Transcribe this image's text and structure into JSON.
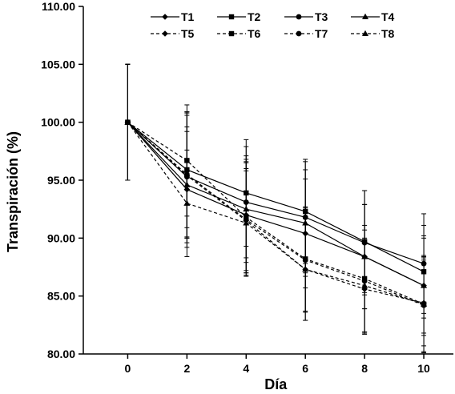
{
  "chart_data": {
    "type": "line",
    "xlabel": "Día",
    "ylabel": "Transpiración  (%)",
    "xlim": [
      -1.5,
      11.0
    ],
    "ylim": [
      80,
      110
    ],
    "x_ticks": [
      0,
      2,
      4,
      6,
      8,
      10
    ],
    "x_tick_labels": [
      "0",
      "2",
      "4",
      "6",
      "8",
      "10"
    ],
    "y_ticks": [
      80,
      85,
      90,
      95,
      100,
      105,
      110
    ],
    "y_tick_labels": [
      "80.00",
      "85.00",
      "90.00",
      "95.00",
      "100.00",
      "105.00",
      "110.00"
    ],
    "grid": false,
    "legend_position": "top",
    "x": [
      0,
      2,
      4,
      6,
      8,
      10
    ],
    "series": [
      {
        "name": "T1",
        "style": "solid",
        "marker": "diamond",
        "values": [
          100,
          94.2,
          92.0,
          90.4,
          88.4,
          85.9
        ],
        "errors": [
          5,
          5.0,
          4.8,
          4.7,
          4.5,
          4.1
        ]
      },
      {
        "name": "T2",
        "style": "solid",
        "marker": "square",
        "values": [
          100,
          95.9,
          93.9,
          92.3,
          89.7,
          87.1
        ],
        "errors": [
          5,
          5.0,
          4.6,
          4.5,
          4.4,
          4.0
        ]
      },
      {
        "name": "T3",
        "style": "solid",
        "marker": "circle",
        "values": [
          100,
          95.3,
          93.1,
          91.8,
          89.6,
          87.8
        ],
        "errors": [
          5,
          5.3,
          4.8,
          4.8,
          4.5,
          4.3
        ]
      },
      {
        "name": "T4",
        "style": "solid",
        "marker": "triangle",
        "values": [
          100,
          94.6,
          92.5,
          91.3,
          88.4,
          85.9
        ],
        "errors": [
          5,
          5.0,
          4.6,
          4.6,
          4.5,
          4.3
        ]
      },
      {
        "name": "T5",
        "style": "dashed",
        "marker": "diamond",
        "values": [
          100,
          95.4,
          91.5,
          87.3,
          85.6,
          84.4
        ],
        "errors": [
          5,
          5.4,
          4.5,
          4.4,
          3.9,
          3.7
        ]
      },
      {
        "name": "T6",
        "style": "dashed",
        "marker": "square",
        "values": [
          100,
          96.7,
          91.8,
          88.2,
          86.5,
          84.3
        ],
        "errors": [
          5,
          4.8,
          4.8,
          4.5,
          4.6,
          4.2
        ]
      },
      {
        "name": "T7",
        "style": "dashed",
        "marker": "circle",
        "values": [
          100,
          95.5,
          91.6,
          88.1,
          86.3,
          84.2
        ],
        "errors": [
          5,
          5.4,
          4.9,
          4.5,
          4.4,
          4.1
        ]
      },
      {
        "name": "T8",
        "style": "dashed",
        "marker": "triangle",
        "values": [
          100,
          93.0,
          91.3,
          87.3,
          85.9,
          84.3
        ],
        "errors": [
          5,
          4.6,
          4.5,
          4.4,
          4.1,
          4.1
        ]
      }
    ]
  }
}
